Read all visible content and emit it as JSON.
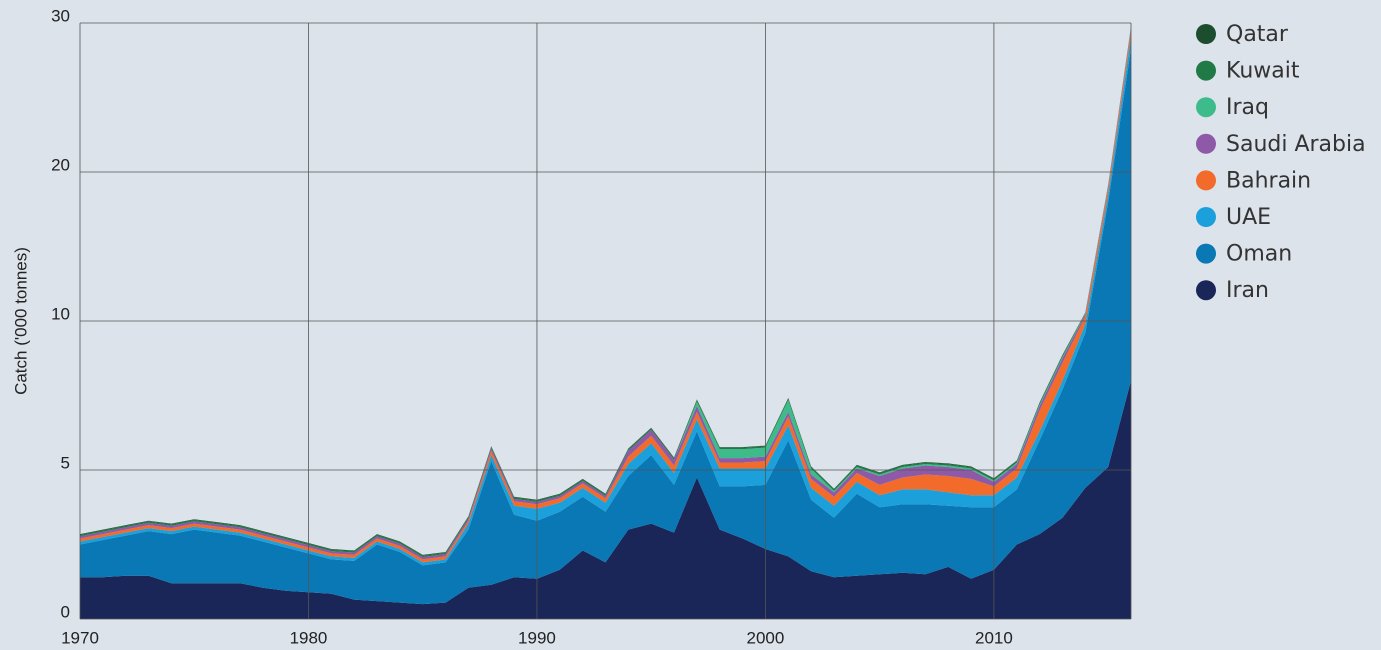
{
  "chart_data": {
    "type": "stacked_area",
    "y_label": "Catch ('000 tonnes)",
    "x": [
      1970,
      1971,
      1972,
      1973,
      1974,
      1975,
      1976,
      1977,
      1978,
      1979,
      1980,
      1981,
      1982,
      1983,
      1984,
      1985,
      1986,
      1987,
      1988,
      1989,
      1990,
      1991,
      1992,
      1993,
      1994,
      1995,
      1996,
      1997,
      1998,
      1999,
      2000,
      2001,
      2002,
      2003,
      2004,
      2005,
      2006,
      2007,
      2008,
      2009,
      2010,
      2011,
      2012,
      2013,
      2014,
      2015,
      2016
    ],
    "xlim": [
      1970,
      2016
    ],
    "xticks": [
      1970,
      1980,
      1990,
      2000,
      2010
    ],
    "ylim": [
      0,
      30
    ],
    "yticks": [
      0,
      5,
      10,
      20,
      30
    ],
    "yscale": "tick-spaced",
    "grid": true,
    "legend": "right",
    "series": [
      {
        "name": "Qatar",
        "color": "#1b4d2e",
        "values": [
          0.02,
          0.02,
          0.02,
          0.02,
          0.02,
          0.02,
          0.02,
          0.02,
          0.02,
          0.02,
          0.02,
          0.02,
          0.02,
          0.02,
          0.02,
          0.02,
          0.02,
          0.02,
          0.02,
          0.02,
          0.02,
          0.02,
          0.02,
          0.02,
          0.02,
          0.02,
          0.02,
          0.02,
          0.02,
          0.02,
          0.02,
          0.02,
          0.02,
          0.02,
          0.02,
          0.02,
          0.02,
          0.02,
          0.02,
          0.02,
          0.02,
          0.02,
          0.02,
          0.02,
          0.02,
          0.02,
          0.02
        ]
      },
      {
        "name": "Kuwait",
        "color": "#1f7a45",
        "values": [
          0.05,
          0.05,
          0.05,
          0.05,
          0.05,
          0.05,
          0.05,
          0.05,
          0.05,
          0.05,
          0.05,
          0.05,
          0.05,
          0.05,
          0.05,
          0.05,
          0.05,
          0.05,
          0.05,
          0.05,
          0.05,
          0.05,
          0.05,
          0.05,
          0.05,
          0.05,
          0.05,
          0.05,
          0.05,
          0.05,
          0.05,
          0.05,
          0.05,
          0.05,
          0.05,
          0.05,
          0.05,
          0.05,
          0.05,
          0.05,
          0.05,
          0.05,
          0.05,
          0.05,
          0.05,
          0.05,
          0.05
        ]
      },
      {
        "name": "Iraq",
        "color": "#3dbb8a",
        "values": [
          0,
          0,
          0,
          0,
          0,
          0,
          0,
          0,
          0,
          0,
          0,
          0,
          0,
          0,
          0,
          0,
          0,
          0,
          0,
          0,
          0,
          0,
          0,
          0,
          0,
          0,
          0,
          0.15,
          0.3,
          0.3,
          0.3,
          0.4,
          0.2,
          0.05,
          0.05,
          0.05,
          0.05,
          0.05,
          0.05,
          0.05,
          0.05,
          0.05,
          0.05,
          0.05,
          0.05,
          0.05,
          0.05
        ]
      },
      {
        "name": "Saudi Arabia",
        "color": "#8e5aa8",
        "values": [
          0.08,
          0.08,
          0.08,
          0.08,
          0.08,
          0.08,
          0.08,
          0.08,
          0.08,
          0.08,
          0.08,
          0.08,
          0.08,
          0.08,
          0.08,
          0.08,
          0.08,
          0.08,
          0.08,
          0.08,
          0.08,
          0.08,
          0.08,
          0.08,
          0.2,
          0.2,
          0.2,
          0.2,
          0.15,
          0.15,
          0.15,
          0.15,
          0.15,
          0.15,
          0.15,
          0.3,
          0.3,
          0.3,
          0.3,
          0.3,
          0.15,
          0.15,
          0.15,
          0.15,
          0.15,
          0.15,
          0.15
        ]
      },
      {
        "name": "Bahrain",
        "color": "#f26b2a",
        "values": [
          0.1,
          0.1,
          0.1,
          0.1,
          0.1,
          0.1,
          0.1,
          0.1,
          0.1,
          0.1,
          0.1,
          0.1,
          0.1,
          0.1,
          0.1,
          0.1,
          0.1,
          0.1,
          0.15,
          0.15,
          0.15,
          0.15,
          0.15,
          0.15,
          0.25,
          0.25,
          0.25,
          0.25,
          0.2,
          0.2,
          0.25,
          0.3,
          0.3,
          0.3,
          0.3,
          0.35,
          0.4,
          0.5,
          0.55,
          0.55,
          0.3,
          0.3,
          0.7,
          0.6,
          0.4,
          0.4,
          0.4
        ]
      },
      {
        "name": "UAE",
        "color": "#1ba0dc",
        "values": [
          0.1,
          0.1,
          0.1,
          0.1,
          0.1,
          0.1,
          0.1,
          0.1,
          0.1,
          0.1,
          0.1,
          0.1,
          0.1,
          0.1,
          0.1,
          0.1,
          0.1,
          0.2,
          0.2,
          0.3,
          0.4,
          0.3,
          0.3,
          0.3,
          0.4,
          0.4,
          0.4,
          0.4,
          0.6,
          0.6,
          0.55,
          0.5,
          0.4,
          0.4,
          0.4,
          0.4,
          0.5,
          0.5,
          0.45,
          0.4,
          0.4,
          0.4,
          0.3,
          0.3,
          0.3,
          0.5,
          0.8
        ]
      },
      {
        "name": "Oman",
        "color": "#0a78b4",
        "values": [
          1.1,
          1.25,
          1.35,
          1.5,
          1.65,
          1.8,
          1.7,
          1.6,
          1.55,
          1.45,
          1.3,
          1.15,
          1.3,
          1.9,
          1.7,
          1.3,
          1.35,
          1.95,
          4.15,
          2.1,
          1.95,
          1.95,
          1.8,
          1.7,
          1.8,
          2.3,
          1.6,
          1.55,
          1.45,
          1.75,
          2.15,
          3.9,
          2.4,
          2.0,
          2.75,
          2.25,
          2.3,
          2.35,
          2.05,
          2.4,
          2.1,
          1.85,
          3.15,
          4.3,
          5.2,
          12.9,
          20.3
        ]
      },
      {
        "name": "Iran",
        "color": "#1a2657",
        "values": [
          1.4,
          1.4,
          1.45,
          1.45,
          1.2,
          1.2,
          1.2,
          1.2,
          1.05,
          0.95,
          0.9,
          0.85,
          0.65,
          0.6,
          0.55,
          0.5,
          0.55,
          1.05,
          1.15,
          1.4,
          1.35,
          1.65,
          2.3,
          1.9,
          3.0,
          3.2,
          2.9,
          4.75,
          3.0,
          2.7,
          2.35,
          2.1,
          1.6,
          1.4,
          1.45,
          1.5,
          1.55,
          1.5,
          1.75,
          1.35,
          1.65,
          2.5,
          2.85,
          3.4,
          4.4,
          5.1,
          8.0
        ]
      }
    ]
  }
}
